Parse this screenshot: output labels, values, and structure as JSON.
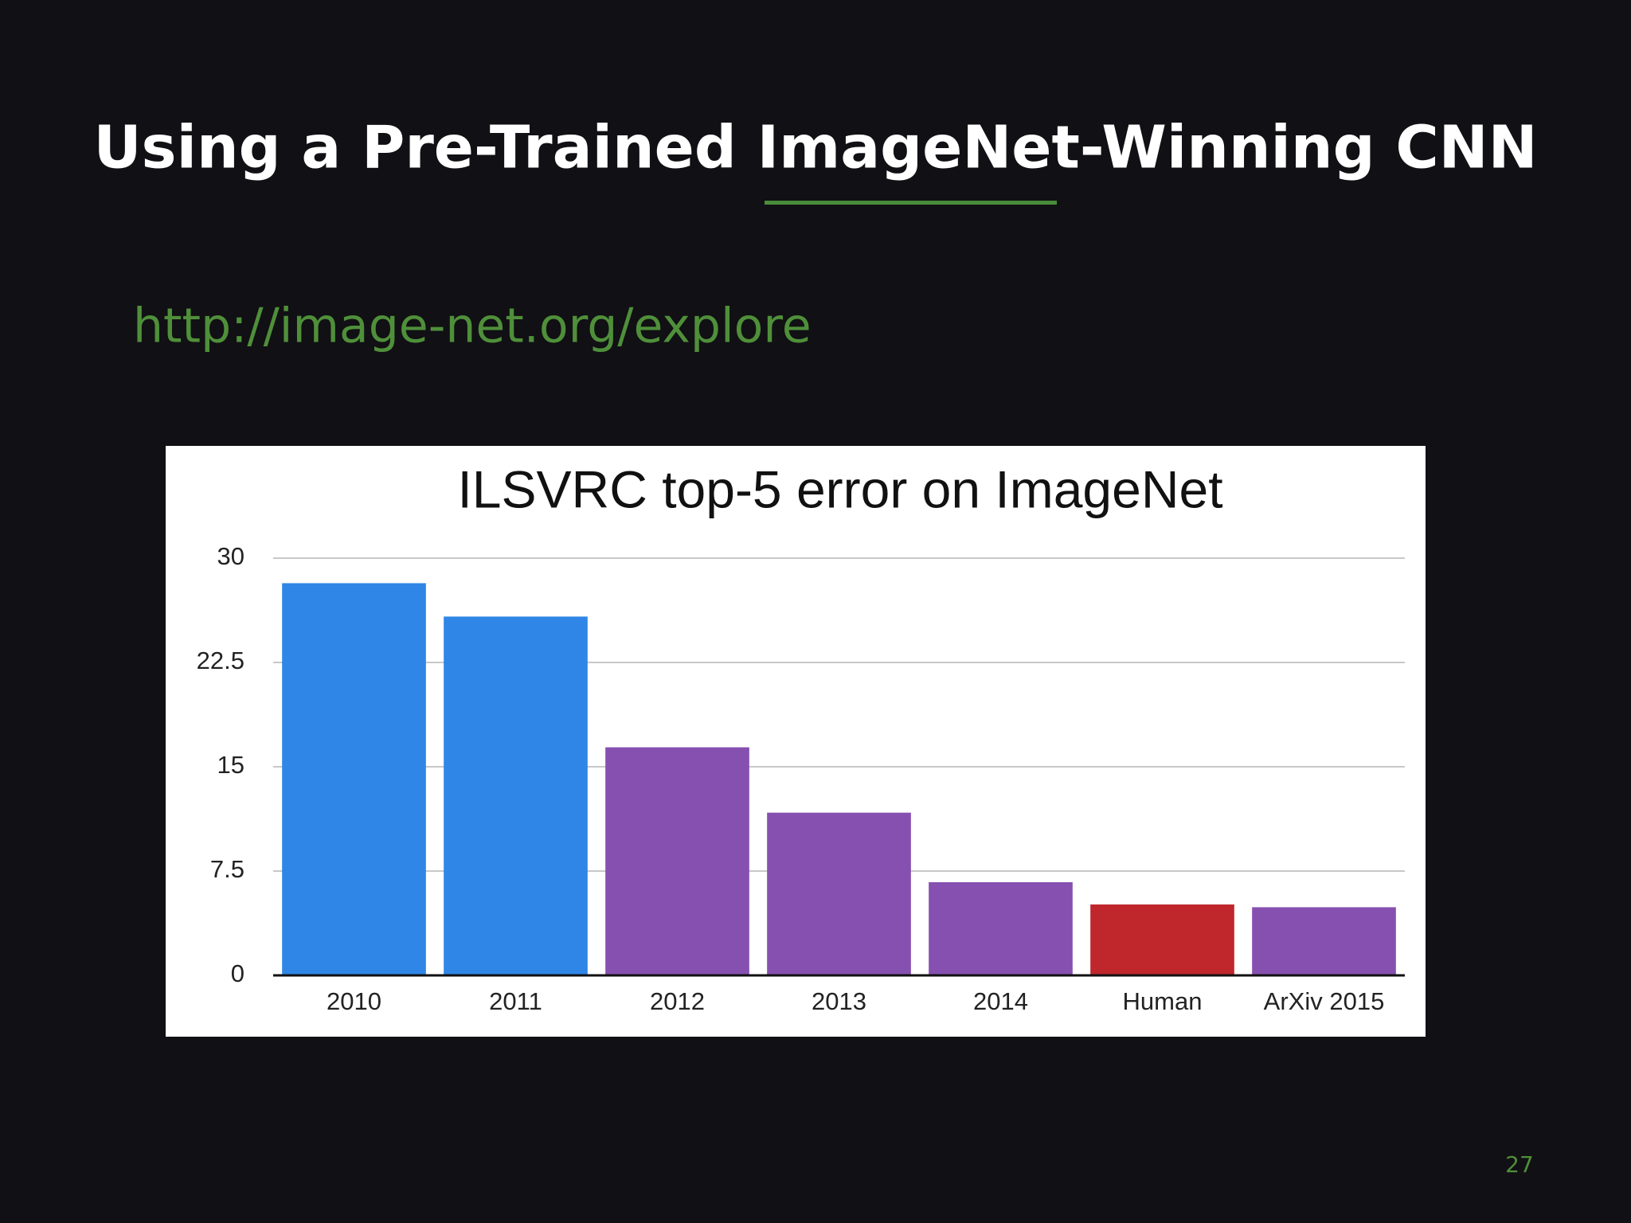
{
  "slide": {
    "title": "Using a Pre-Trained ImageNet-Winning CNN",
    "link": "http://image-net.org/explore",
    "page_number": "27"
  },
  "chart_data": {
    "type": "bar",
    "title": "ILSVRC top-5 error on ImageNet",
    "categories": [
      "2010",
      "2011",
      "2012",
      "2013",
      "2014",
      "Human",
      "ArXiv 2015"
    ],
    "values": [
      28.2,
      25.8,
      16.4,
      11.7,
      6.7,
      5.1,
      4.9
    ],
    "colors": [
      "#2f86e6",
      "#2f86e6",
      "#8650b0",
      "#8650b0",
      "#8650b0",
      "#c0272d",
      "#8650b0"
    ],
    "ylim": [
      0,
      30
    ],
    "yticks": [
      0,
      7.5,
      15,
      22.5,
      30
    ],
    "grid": true
  }
}
